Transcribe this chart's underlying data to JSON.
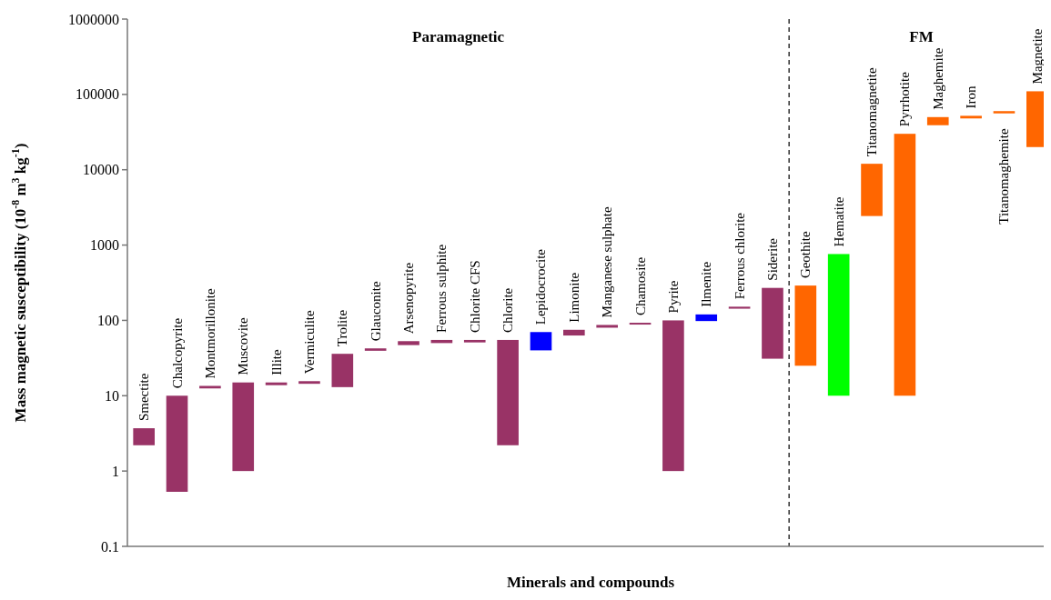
{
  "chart_data": {
    "type": "bar",
    "xlabel": "Minerals and compounds",
    "ylabel": "Mass magnetic susceptibility (10$^{-8}$ m$^{3}$ kg$^{-1}$)",
    "categories": [
      "Smectite",
      "Chalcopyrite",
      "Montmorillonite",
      "Muscovite",
      "Illite",
      "Vermiculite",
      "Trolite",
      "Glauconite",
      "Arsenopyrite",
      "Ferrous sulphite",
      "Chlorite CFS",
      "Chlorite",
      "Lepidocrocite",
      "Limonite",
      "Manganese sulphate",
      "Chamosite",
      "Pyrite",
      "Ilmenite",
      "Ferrous chlorite",
      "Siderite",
      "Geothite",
      "Hematite",
      "Titanomagnetite",
      "Pyrrhotite",
      "Maghemite",
      "Iron",
      "Titanomaghemite",
      "Magnetite"
    ],
    "base": [
      2.2,
      0.53,
      12.5,
      1,
      13.8,
      14.4,
      13,
      39.5,
      47,
      50,
      51,
      2.2,
      40,
      63,
      80,
      88,
      1,
      98,
      143,
      31,
      25,
      10,
      2430,
      10,
      39000,
      48000,
      56000,
      20000
    ],
    "values": [
      1.5,
      9.47,
      1,
      14,
      1.2,
      1.2,
      23,
      3,
      6,
      5,
      4,
      52.8,
      30,
      12,
      7,
      5,
      99,
      22,
      9,
      239,
      265,
      750,
      9570,
      29990,
      11000,
      4000,
      4000,
      90000
    ],
    "colors": [
      "#993366",
      "#993366",
      "#993366",
      "#993366",
      "#993366",
      "#993366",
      "#993366",
      "#993366",
      "#993366",
      "#993366",
      "#993366",
      "#993366",
      "#0000ff",
      "#993366",
      "#993366",
      "#993366",
      "#993366",
      "#0000ff",
      "#993366",
      "#993366",
      "#ff6600",
      "#00ff00",
      "#ff6600",
      "#ff6600",
      "#ff6600",
      "#ff6600",
      "#ff6600",
      "#ff6600"
    ],
    "log": true,
    "ylim": [
      0.1,
      1000000
    ],
    "yticks": [
      0.1,
      1,
      10,
      100,
      1000,
      10000,
      100000,
      1000000
    ],
    "annotations": [
      "Paramagnetic",
      "FM"
    ]
  }
}
